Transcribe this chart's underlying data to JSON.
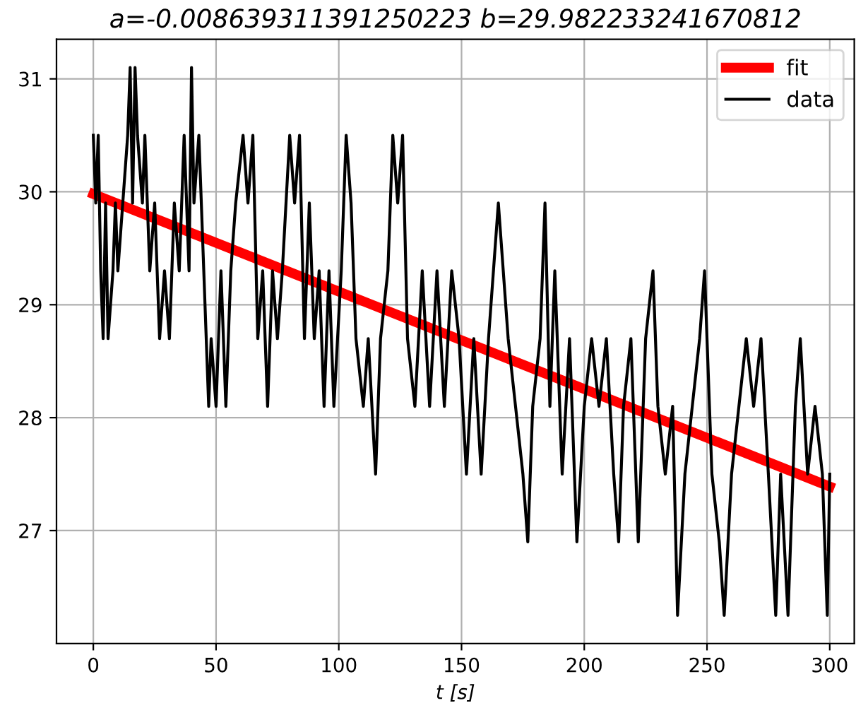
{
  "chart_data": {
    "type": "line",
    "title": "a=-0.008639311391250223 b=29.982233241670812",
    "xlabel": "t [s]",
    "xlim": [
      -15,
      310
    ],
    "ylim": [
      26.0,
      31.35
    ],
    "xticks": [
      0,
      50,
      100,
      150,
      200,
      250,
      300
    ],
    "yticks": [
      27,
      28,
      29,
      30,
      31
    ],
    "grid": true,
    "legend": "top right",
    "series": [
      {
        "name": "fit",
        "color": "#ff0000",
        "x": [
          0,
          300
        ],
        "values": [
          29.98,
          27.39
        ]
      },
      {
        "name": "data",
        "color": "#000000",
        "x": [
          0,
          1,
          2,
          3,
          4,
          5,
          6,
          8,
          9,
          10,
          12,
          14,
          15,
          16,
          17,
          18,
          20,
          21,
          23,
          25,
          27,
          29,
          31,
          33,
          35,
          37,
          39,
          40,
          41,
          43,
          45,
          47,
          48,
          50,
          52,
          54,
          56,
          58,
          61,
          63,
          65,
          67,
          69,
          71,
          73,
          75,
          77,
          80,
          82,
          84,
          86,
          88,
          90,
          92,
          94,
          96,
          98,
          101,
          103,
          105,
          107,
          110,
          112,
          115,
          117,
          120,
          122,
          124,
          126,
          128,
          131,
          134,
          137,
          140,
          143,
          146,
          149,
          152,
          155,
          158,
          161,
          163,
          165,
          167,
          169,
          172,
          175,
          177,
          179,
          182,
          184,
          186,
          188,
          191,
          194,
          197,
          200,
          203,
          206,
          209,
          212,
          214,
          216,
          219,
          222,
          225,
          228,
          230,
          233,
          236,
          238,
          241,
          244,
          247,
          249,
          252,
          255,
          257,
          260,
          263,
          266,
          269,
          272,
          275,
          278,
          280,
          283,
          286,
          288,
          291,
          294,
          297,
          299,
          300
        ],
        "values": [
          30.5,
          29.9,
          30.5,
          29.3,
          28.7,
          29.9,
          28.7,
          29.3,
          29.9,
          29.3,
          29.9,
          30.5,
          31.1,
          29.9,
          31.1,
          30.5,
          29.9,
          30.5,
          29.3,
          29.9,
          28.7,
          29.3,
          28.7,
          29.9,
          29.3,
          30.5,
          29.3,
          31.1,
          29.9,
          30.5,
          29.3,
          28.1,
          28.7,
          28.1,
          29.3,
          28.1,
          29.3,
          29.9,
          30.5,
          29.9,
          30.5,
          28.7,
          29.3,
          28.1,
          29.3,
          28.7,
          29.3,
          30.5,
          29.9,
          30.5,
          28.7,
          29.9,
          28.7,
          29.3,
          28.1,
          29.3,
          28.1,
          29.3,
          30.5,
          29.9,
          28.7,
          28.1,
          28.7,
          27.5,
          28.7,
          29.3,
          30.5,
          29.9,
          30.5,
          28.7,
          28.1,
          29.3,
          28.1,
          29.3,
          28.1,
          29.3,
          28.7,
          27.5,
          28.7,
          27.5,
          28.7,
          29.3,
          29.9,
          29.3,
          28.7,
          28.1,
          27.5,
          26.9,
          28.1,
          28.7,
          29.9,
          28.1,
          29.3,
          27.5,
          28.7,
          26.9,
          28.1,
          28.7,
          28.1,
          28.7,
          27.5,
          26.9,
          28.1,
          28.7,
          26.9,
          28.7,
          29.3,
          28.1,
          27.5,
          28.1,
          26.25,
          27.5,
          28.1,
          28.7,
          29.3,
          27.5,
          26.9,
          26.25,
          27.5,
          28.1,
          28.7,
          28.1,
          28.7,
          27.5,
          26.25,
          27.5,
          26.25,
          28.1,
          28.7,
          27.5,
          28.1,
          27.5,
          26.25,
          27.5
        ]
      }
    ]
  }
}
